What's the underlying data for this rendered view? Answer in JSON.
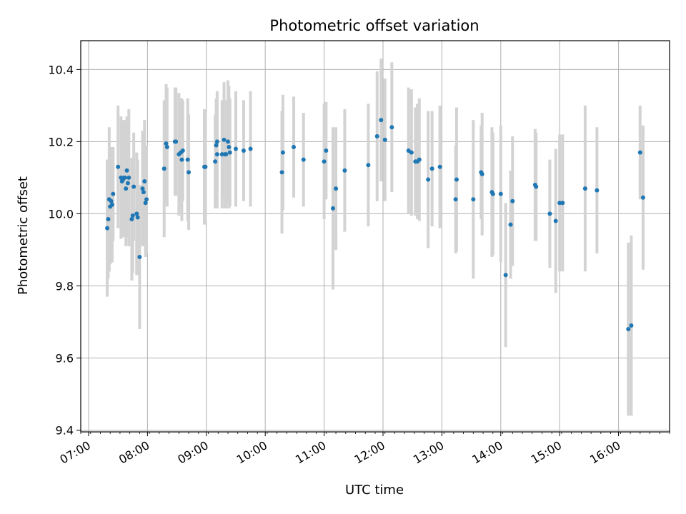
{
  "chart_data": {
    "type": "scatter",
    "title": "Photometric offset variation",
    "xlabel": "UTC time",
    "ylabel": "Photometric offset",
    "xlim": [
      "06:52",
      "16:52"
    ],
    "ylim": [
      9.395,
      10.48
    ],
    "x_ticks": [
      "07:00",
      "08:00",
      "09:00",
      "10:00",
      "11:00",
      "12:00",
      "13:00",
      "14:00",
      "15:00",
      "16:00"
    ],
    "y_ticks": [
      "9.4",
      "9.6",
      "9.8",
      "10.0",
      "10.2",
      "10.4"
    ],
    "grid": true,
    "marker_color": "#1f77b4",
    "errorbar_color": "#d3d3d3",
    "points": [
      {
        "t": "07:19",
        "y": 9.96,
        "e": 0.19
      },
      {
        "t": "07:20",
        "y": 9.985,
        "e": 0.165
      },
      {
        "t": "07:21",
        "y": 10.04,
        "e": 0.2
      },
      {
        "t": "07:22",
        "y": 10.02,
        "e": 0.16
      },
      {
        "t": "07:23",
        "y": 10.035,
        "e": 0.15
      },
      {
        "t": "07:24",
        "y": 10.025,
        "e": 0.16
      },
      {
        "t": "07:25",
        "y": 10.055,
        "e": 0.13
      },
      {
        "t": "07:30",
        "y": 10.13,
        "e": 0.17
      },
      {
        "t": "07:33",
        "y": 10.1,
        "e": 0.17
      },
      {
        "t": "07:34",
        "y": 10.09,
        "e": 0.15
      },
      {
        "t": "07:35",
        "y": 10.095,
        "e": 0.16
      },
      {
        "t": "07:36",
        "y": 10.1,
        "e": 0.16
      },
      {
        "t": "07:37",
        "y": 10.1,
        "e": 0.16
      },
      {
        "t": "07:38",
        "y": 10.07,
        "e": 0.16
      },
      {
        "t": "07:39",
        "y": 10.12,
        "e": 0.15
      },
      {
        "t": "07:40",
        "y": 10.085,
        "e": 0.15
      },
      {
        "t": "07:41",
        "y": 10.1,
        "e": 0.19
      },
      {
        "t": "07:44",
        "y": 9.985,
        "e": 0.17
      },
      {
        "t": "07:45",
        "y": 9.995,
        "e": 0.16
      },
      {
        "t": "07:46",
        "y": 10.075,
        "e": 0.15
      },
      {
        "t": "07:49",
        "y": 10.0,
        "e": 0.17
      },
      {
        "t": "07:50",
        "y": 9.99,
        "e": 0.16
      },
      {
        "t": "07:52",
        "y": 9.88,
        "e": 0.2
      },
      {
        "t": "07:55",
        "y": 10.07,
        "e": 0.16
      },
      {
        "t": "07:56",
        "y": 10.06,
        "e": 0.15
      },
      {
        "t": "07:57",
        "y": 10.09,
        "e": 0.17
      },
      {
        "t": "07:58",
        "y": 10.03,
        "e": 0.15
      },
      {
        "t": "07:59",
        "y": 10.04,
        "e": 0.15
      },
      {
        "t": "08:17",
        "y": 10.125,
        "e": 0.19
      },
      {
        "t": "08:19",
        "y": 10.195,
        "e": 0.165
      },
      {
        "t": "08:20",
        "y": 10.185,
        "e": 0.165
      },
      {
        "t": "08:28",
        "y": 10.2,
        "e": 0.15
      },
      {
        "t": "08:29",
        "y": 10.2,
        "e": 0.15
      },
      {
        "t": "08:32",
        "y": 10.165,
        "e": 0.17
      },
      {
        "t": "08:34",
        "y": 10.17,
        "e": 0.15
      },
      {
        "t": "08:35",
        "y": 10.15,
        "e": 0.17
      },
      {
        "t": "08:36",
        "y": 10.175,
        "e": 0.14
      },
      {
        "t": "08:41",
        "y": 10.15,
        "e": 0.17
      },
      {
        "t": "08:42",
        "y": 10.115,
        "e": 0.16
      },
      {
        "t": "08:58",
        "y": 10.13,
        "e": 0.16
      },
      {
        "t": "08:59",
        "y": 10.13,
        "e": 0.15
      },
      {
        "t": "09:09",
        "y": 10.145,
        "e": 0.13
      },
      {
        "t": "09:10",
        "y": 10.19,
        "e": 0.13
      },
      {
        "t": "09:11",
        "y": 10.2,
        "e": 0.14
      },
      {
        "t": "09:11",
        "y": 10.165,
        "e": 0.15
      },
      {
        "t": "09:16",
        "y": 10.165,
        "e": 0.15
      },
      {
        "t": "09:18",
        "y": 10.205,
        "e": 0.16
      },
      {
        "t": "09:19",
        "y": 10.165,
        "e": 0.15
      },
      {
        "t": "09:20",
        "y": 10.165,
        "e": 0.15
      },
      {
        "t": "09:22",
        "y": 10.2,
        "e": 0.17
      },
      {
        "t": "09:23",
        "y": 10.185,
        "e": 0.17
      },
      {
        "t": "09:24",
        "y": 10.17,
        "e": 0.15
      },
      {
        "t": "09:30",
        "y": 10.18,
        "e": 0.16
      },
      {
        "t": "09:38",
        "y": 10.175,
        "e": 0.14
      },
      {
        "t": "09:45",
        "y": 10.18,
        "e": 0.16
      },
      {
        "t": "10:17",
        "y": 10.115,
        "e": 0.17
      },
      {
        "t": "10:18",
        "y": 10.17,
        "e": 0.16
      },
      {
        "t": "10:29",
        "y": 10.185,
        "e": 0.14
      },
      {
        "t": "10:39",
        "y": 10.15,
        "e": 0.13
      },
      {
        "t": "11:00",
        "y": 10.145,
        "e": 0.16
      },
      {
        "t": "11:02",
        "y": 10.175,
        "e": 0.135
      },
      {
        "t": "11:09",
        "y": 10.015,
        "e": 0.225
      },
      {
        "t": "11:12",
        "y": 10.07,
        "e": 0.17
      },
      {
        "t": "11:21",
        "y": 10.12,
        "e": 0.17
      },
      {
        "t": "11:45",
        "y": 10.135,
        "e": 0.17
      },
      {
        "t": "11:54",
        "y": 10.215,
        "e": 0.18
      },
      {
        "t": "11:58",
        "y": 10.26,
        "e": 0.17
      },
      {
        "t": "12:02",
        "y": 10.205,
        "e": 0.17
      },
      {
        "t": "12:09",
        "y": 10.24,
        "e": 0.18
      },
      {
        "t": "12:26",
        "y": 10.175,
        "e": 0.175
      },
      {
        "t": "12:29",
        "y": 10.17,
        "e": 0.175
      },
      {
        "t": "12:33",
        "y": 10.145,
        "e": 0.15
      },
      {
        "t": "12:35",
        "y": 10.145,
        "e": 0.16
      },
      {
        "t": "12:37",
        "y": 10.15,
        "e": 0.17
      },
      {
        "t": "12:46",
        "y": 10.095,
        "e": 0.19
      },
      {
        "t": "12:50",
        "y": 10.125,
        "e": 0.16
      },
      {
        "t": "12:58",
        "y": 10.13,
        "e": 0.17
      },
      {
        "t": "13:14",
        "y": 10.04,
        "e": 0.15
      },
      {
        "t": "13:15",
        "y": 10.095,
        "e": 0.2
      },
      {
        "t": "13:32",
        "y": 10.04,
        "e": 0.22
      },
      {
        "t": "13:40",
        "y": 10.115,
        "e": 0.13
      },
      {
        "t": "13:41",
        "y": 10.11,
        "e": 0.17
      },
      {
        "t": "13:51",
        "y": 10.06,
        "e": 0.18
      },
      {
        "t": "13:52",
        "y": 10.055,
        "e": 0.17
      },
      {
        "t": "14:00",
        "y": 10.055,
        "e": 0.19
      },
      {
        "t": "14:05",
        "y": 9.83,
        "e": 0.2
      },
      {
        "t": "14:10",
        "y": 9.97,
        "e": 0.15
      },
      {
        "t": "14:12",
        "y": 10.035,
        "e": 0.18
      },
      {
        "t": "14:35",
        "y": 10.08,
        "e": 0.155
      },
      {
        "t": "14:36",
        "y": 10.075,
        "e": 0.15
      },
      {
        "t": "14:50",
        "y": 10.0,
        "e": 0.15
      },
      {
        "t": "14:56",
        "y": 9.98,
        "e": 0.2
      },
      {
        "t": "15:00",
        "y": 10.03,
        "e": 0.19
      },
      {
        "t": "15:03",
        "y": 10.03,
        "e": 0.19
      },
      {
        "t": "15:26",
        "y": 10.07,
        "e": 0.23
      },
      {
        "t": "15:38",
        "y": 10.065,
        "e": 0.175
      },
      {
        "t": "16:10",
        "y": 9.68,
        "e": 0.24
      },
      {
        "t": "16:13",
        "y": 9.69,
        "e": 0.25
      },
      {
        "t": "16:22",
        "y": 10.17,
        "e": 0.13
      },
      {
        "t": "16:25",
        "y": 10.045,
        "e": 0.2
      }
    ]
  }
}
